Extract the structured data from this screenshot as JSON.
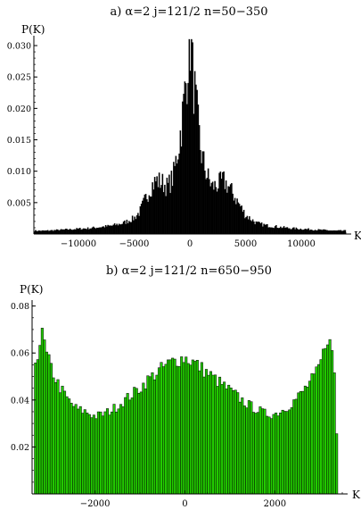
{
  "chart_data": [
    {
      "type": "bar",
      "title": "a)   α=2 j=121/2  n=50−350",
      "ylabel": "P(K)",
      "xlabel": "K",
      "xlim": [
        -14000,
        14000
      ],
      "ylim": [
        0,
        0.031
      ],
      "xticks": [
        -10000,
        -5000,
        0,
        5000,
        10000
      ],
      "xticklabels": [
        "−10000",
        "−5000",
        "0",
        "5000",
        "10000"
      ],
      "yticks": [
        0.005,
        0.01,
        0.015,
        0.02,
        0.025,
        0.03
      ],
      "yticklabels": [
        "0.005",
        "0.010",
        "0.015",
        "0.020",
        "0.025",
        "0.030"
      ],
      "bar_color": "#000000",
      "bar_edge": "#000000",
      "bin_width": 100,
      "x": [
        -14000,
        -13000,
        -12000,
        -11000,
        -10000,
        -9000,
        -8000,
        -7000,
        -6000,
        -5000,
        -4500,
        -4000,
        -3500,
        -3000,
        -2500,
        -2000,
        -1500,
        -1000,
        -700,
        -400,
        -200,
        -100,
        0,
        100,
        200,
        400,
        700,
        1000,
        1500,
        2000,
        2500,
        3000,
        3500,
        4000,
        4500,
        5000,
        6000,
        7000,
        8000,
        9000,
        10000,
        11000,
        12000,
        13000,
        14000
      ],
      "values": [
        0.0005,
        0.0005,
        0.0006,
        0.0007,
        0.0008,
        0.0009,
        0.0011,
        0.0013,
        0.0017,
        0.0025,
        0.0035,
        0.0055,
        0.0075,
        0.0085,
        0.0082,
        0.0075,
        0.009,
        0.014,
        0.018,
        0.023,
        0.027,
        0.031,
        0.031,
        0.031,
        0.027,
        0.023,
        0.018,
        0.013,
        0.0095,
        0.0075,
        0.0078,
        0.0085,
        0.0075,
        0.006,
        0.0045,
        0.003,
        0.0017,
        0.0013,
        0.0011,
        0.0009,
        0.0008,
        0.0007,
        0.0006,
        0.0005,
        0.0005
      ]
    },
    {
      "type": "bar",
      "title": "b)    α=2 j=121/2  n=650−950",
      "ylabel": "P(K)",
      "xlabel": "K",
      "xlim": [
        -3400,
        3500
      ],
      "ylim": [
        0,
        0.081
      ],
      "xticks": [
        -2000,
        0,
        2000
      ],
      "xticklabels": [
        "−2000",
        "0",
        "2000"
      ],
      "yticks": [
        0.02,
        0.04,
        0.06,
        0.08
      ],
      "yticklabels": [
        "0.02",
        "0.04",
        "0.06",
        "0.08"
      ],
      "bar_color": "#22cc00",
      "bar_edge": "#000000",
      "bin_width": 50,
      "x": [
        -3350,
        -3250,
        -3200,
        -3150,
        -3100,
        -3000,
        -2900,
        -2800,
        -2600,
        -2400,
        -2200,
        -2000,
        -1800,
        -1600,
        -1400,
        -1200,
        -1000,
        -800,
        -600,
        -400,
        -200,
        0,
        200,
        400,
        600,
        800,
        1000,
        1200,
        1400,
        1600,
        1800,
        2000,
        2200,
        2400,
        2600,
        2800,
        2900,
        3000,
        3100,
        3150,
        3200,
        3300,
        3350,
        3400
      ],
      "values": [
        0.055,
        0.062,
        0.067,
        0.068,
        0.06,
        0.055,
        0.05,
        0.046,
        0.04,
        0.036,
        0.035,
        0.033,
        0.034,
        0.036,
        0.039,
        0.042,
        0.045,
        0.049,
        0.052,
        0.055,
        0.057,
        0.058,
        0.056,
        0.053,
        0.05,
        0.047,
        0.044,
        0.041,
        0.038,
        0.036,
        0.034,
        0.034,
        0.036,
        0.039,
        0.043,
        0.048,
        0.05,
        0.055,
        0.061,
        0.068,
        0.066,
        0.058,
        0.046,
        0.005
      ]
    }
  ]
}
